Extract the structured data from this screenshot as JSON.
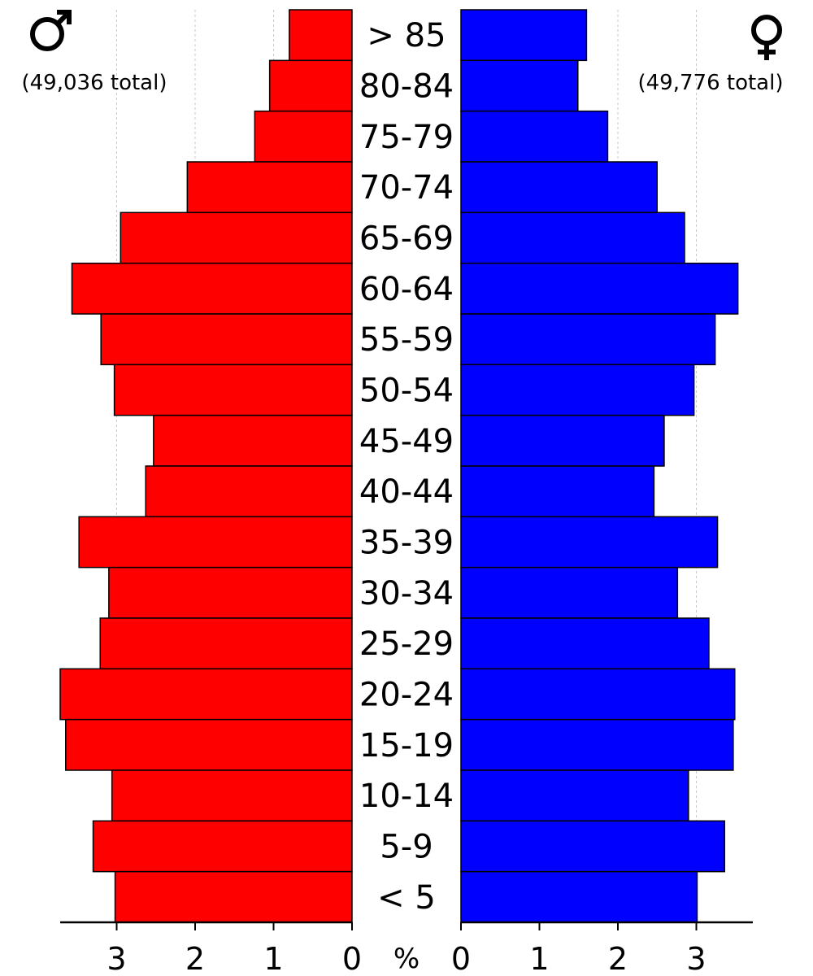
{
  "chart_data": {
    "type": "bar",
    "orientation": "horizontal",
    "layout": "population-pyramid",
    "categories": [
      "> 85",
      "80-84",
      "75-79",
      "70-74",
      "65-69",
      "60-64",
      "55-59",
      "50-54",
      "45-49",
      "40-44",
      "35-39",
      "30-34",
      "25-29",
      "20-24",
      "15-19",
      "10-14",
      "5-9",
      "< 5"
    ],
    "series": [
      {
        "side": "left",
        "symbol": "♂",
        "total_label": "(49,036 total)",
        "color": "#ff0000",
        "values": [
          0.8,
          1.05,
          1.24,
          2.1,
          2.95,
          3.57,
          3.2,
          3.03,
          2.53,
          2.63,
          3.48,
          3.1,
          3.21,
          3.72,
          3.65,
          3.06,
          3.3,
          3.02
        ]
      },
      {
        "side": "right",
        "symbol": "♀",
        "total_label": "(49,776 total)",
        "color": "#0000ff",
        "values": [
          1.6,
          1.49,
          1.87,
          2.5,
          2.85,
          3.53,
          3.24,
          2.97,
          2.59,
          2.46,
          3.27,
          2.76,
          3.16,
          3.49,
          3.47,
          2.9,
          3.36,
          3.01
        ]
      }
    ],
    "x_ticks": [
      "0",
      "1",
      "2",
      "3"
    ],
    "x_unit": "%",
    "xlim": [
      0,
      3.72
    ],
    "grid": true,
    "bar_edge_color": "#000000",
    "grid_color": "#c8c8c8"
  }
}
